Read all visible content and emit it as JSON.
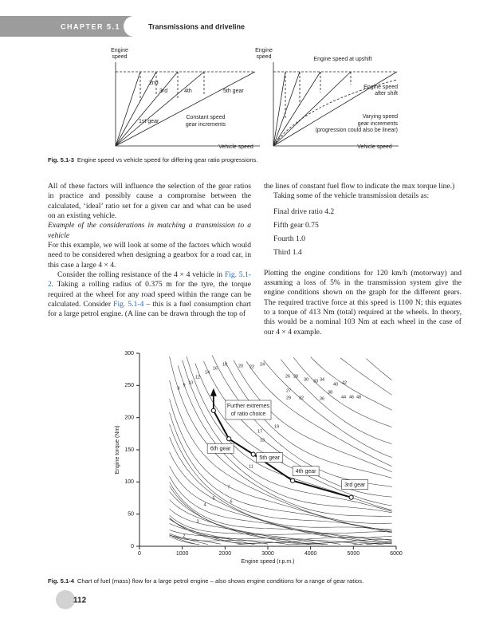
{
  "header": {
    "chapter": "CHAPTER 5.1",
    "title": "Transmissions and driveline"
  },
  "figure1": {
    "left": {
      "y_label": [
        "Engine",
        "speed"
      ],
      "gears": [
        "1st gear",
        "2nd",
        "3rd",
        "4th",
        "5th gear"
      ],
      "note": [
        "Constant speed",
        "gear increments"
      ],
      "x_label": "Vehicle speed"
    },
    "right": {
      "y_label": [
        "Engine",
        "speed"
      ],
      "upshift": "Engine speed at upshift",
      "after": [
        "Engine speed",
        "after shift"
      ],
      "note": [
        "Varying speed",
        "gear increments",
        "(progression could also be linear)"
      ],
      "x_label": "Vehicle speed"
    },
    "caption": {
      "label": "Fig. 5.1-3",
      "text": "Engine speed vs vehicle speed for differing gear ratio progressions."
    }
  },
  "body": {
    "left": {
      "p1": "All of these factors will influence the selection of the gear ratios in practice and possibly cause a compromise between the calculated, ‘ideal’ ratio set for a given car and what can be used on an existing vehicle.",
      "heading": "Example of the considerations in matching a transmission to a vehicle",
      "p2": "For this example, we will look at some of the factors which would need to be considered when designing a gearbox for a road car, in this case a large 4 × 4.",
      "p3": [
        "Consider the rolling resistance of the 4 × 4 vehicle in ",
        "Fig. 5.1-2",
        ". Taking a rolling radius of 0.375 m for the tyre, the torque required at the wheel for any road speed within the range can be calculated. Consider ",
        "Fig. 5.1-4",
        " – this is a fuel consumption chart for a large petrol engine. (A line can be drawn through the top of"
      ]
    },
    "right": {
      "p1": "the lines of constant fuel flow to indicate the max torque line.)",
      "p2": "Taking some of the vehicle transmission details as:",
      "list": [
        "Final drive ratio 4.2",
        "Fifth gear 0.75",
        "Fourth 1.0",
        "Third 1.4"
      ],
      "p3": "Plotting the engine conditions for 120 km/h (motorway) and assuming a loss of 5% in the transmission system give the engine conditions shown on the graph for the different gears. The required tractive force at this speed is 1100 N; this equates to a torque of 413 Nm (total) required at the wheels. In theory, this would be a nominal 103 Nm at each wheel in the case of our 4 × 4 example."
    }
  },
  "figure2": {
    "chart": {
      "type": "line",
      "x_label": "Engine speed (r.p.m.)",
      "y_label": "Engine torque (Nm)",
      "xlim": [
        0,
        6000
      ],
      "xticks": [
        0,
        1000,
        2000,
        3000,
        4000,
        5000,
        6000
      ],
      "ylim": [
        0,
        300
      ],
      "yticks": [
        0,
        50,
        100,
        150,
        200,
        250,
        300
      ],
      "extreme": {
        "x": 1730,
        "y": 211
      },
      "annotation": [
        "Further extremes",
        "of ratio choice"
      ],
      "points": [
        {
          "label": "6th gear",
          "x": 2090,
          "y": 167
        },
        {
          "label": "5th gear",
          "x": 2660,
          "y": 143
        },
        {
          "label": "4th gear",
          "x": 3580,
          "y": 102
        },
        {
          "label": "3rd gear",
          "x": 4950,
          "y": 76
        }
      ],
      "contour_labels": [
        2,
        3,
        4,
        5,
        6,
        7,
        8,
        9,
        10,
        11,
        12,
        13,
        14,
        16,
        17,
        18,
        19,
        20,
        22,
        24,
        26,
        27,
        28,
        29,
        30,
        32,
        33,
        34,
        36,
        38,
        40,
        42,
        44,
        46,
        48
      ]
    },
    "caption": {
      "label": "Fig. 5.1-4",
      "text": "Chart of fuel (mass) flow for a large petrol engine – also shows engine conditions for a range of gear ratios."
    }
  },
  "page_number": "112"
}
